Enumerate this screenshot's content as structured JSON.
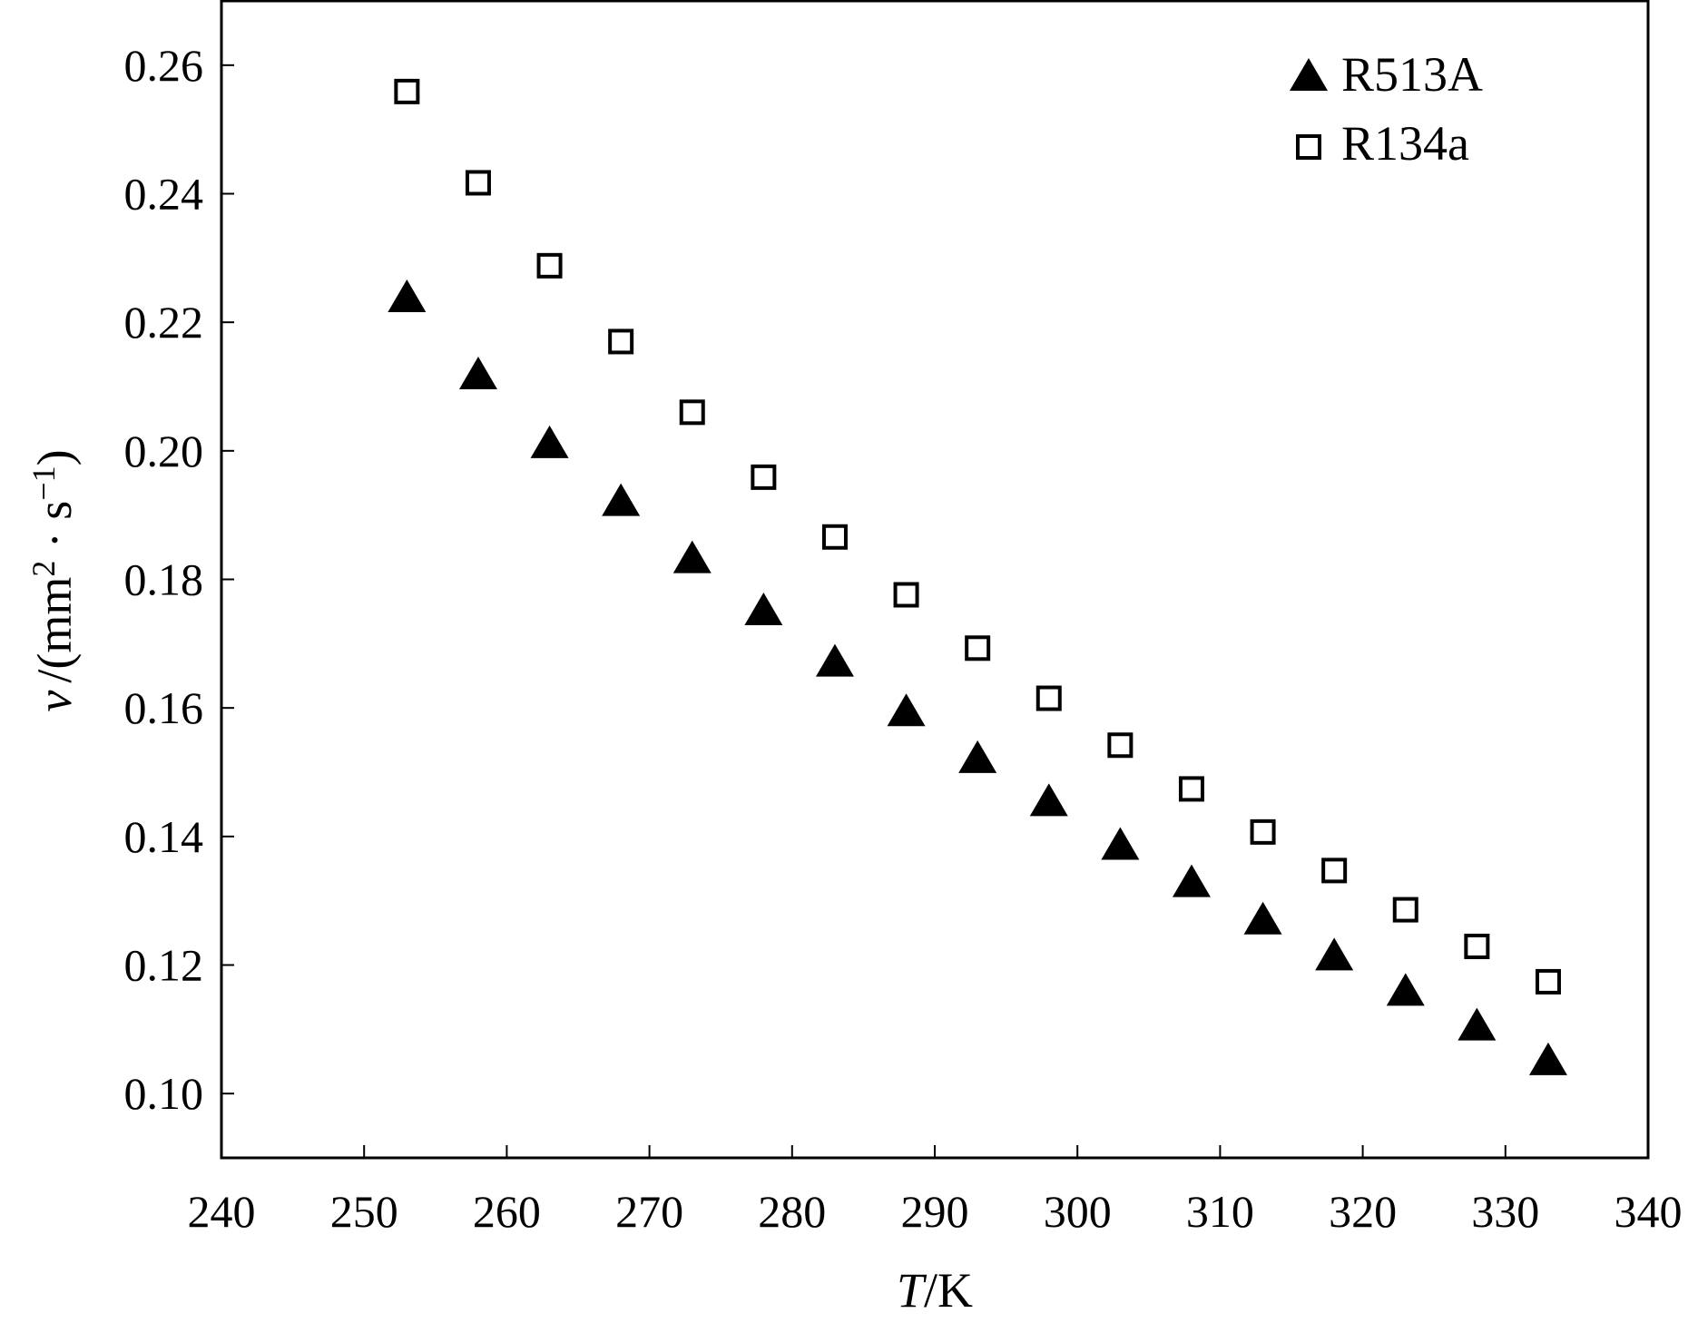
{
  "chart_data": {
    "type": "scatter",
    "title": "",
    "xlabel": {
      "symbol": "T",
      "unit": "/K"
    },
    "ylabel": {
      "symbol": "v",
      "unit_prefix": "/(mm",
      "unit_sup1": "2",
      "unit_mid": " · s",
      "unit_sup2": "−1",
      "unit_suffix": ")"
    },
    "xlim": [
      240,
      340
    ],
    "ylim": [
      0.09,
      0.27
    ],
    "xticks": [
      240,
      250,
      260,
      270,
      280,
      290,
      300,
      310,
      320,
      330,
      340
    ],
    "xtick_labels": [
      "240",
      "250",
      "260",
      "270",
      "280",
      "290",
      "300",
      "310",
      "320",
      "330",
      "340"
    ],
    "yticks": [
      0.1,
      0.12,
      0.14,
      0.16,
      0.18,
      0.2,
      0.22,
      0.24,
      0.26
    ],
    "ytick_labels": [
      "0.10",
      "0.12",
      "0.14",
      "0.16",
      "0.18",
      "0.20",
      "0.22",
      "0.24",
      "0.26"
    ],
    "grid": false,
    "legend_position": "top-right",
    "x": [
      253,
      258,
      263,
      268,
      273,
      278,
      283,
      288,
      293,
      298,
      303,
      308,
      313,
      318,
      323,
      328,
      333
    ],
    "series": [
      {
        "name": "R513A",
        "marker": "filled-triangle",
        "color": "#000000",
        "values": [
          0.2235,
          0.2115,
          0.2008,
          0.1918,
          0.1829,
          0.1748,
          0.1668,
          0.1591,
          0.1518,
          0.1451,
          0.1383,
          0.1325,
          0.1267,
          0.1211,
          0.1156,
          0.1102,
          0.1048
        ]
      },
      {
        "name": "R134a",
        "marker": "hollow-square",
        "color": "#000000",
        "values": [
          0.2559,
          0.2417,
          0.2288,
          0.217,
          0.206,
          0.1959,
          0.1866,
          0.1776,
          0.1693,
          0.1615,
          0.1542,
          0.1474,
          0.1407,
          0.1347,
          0.1286,
          0.1229,
          0.1174
        ]
      }
    ]
  }
}
